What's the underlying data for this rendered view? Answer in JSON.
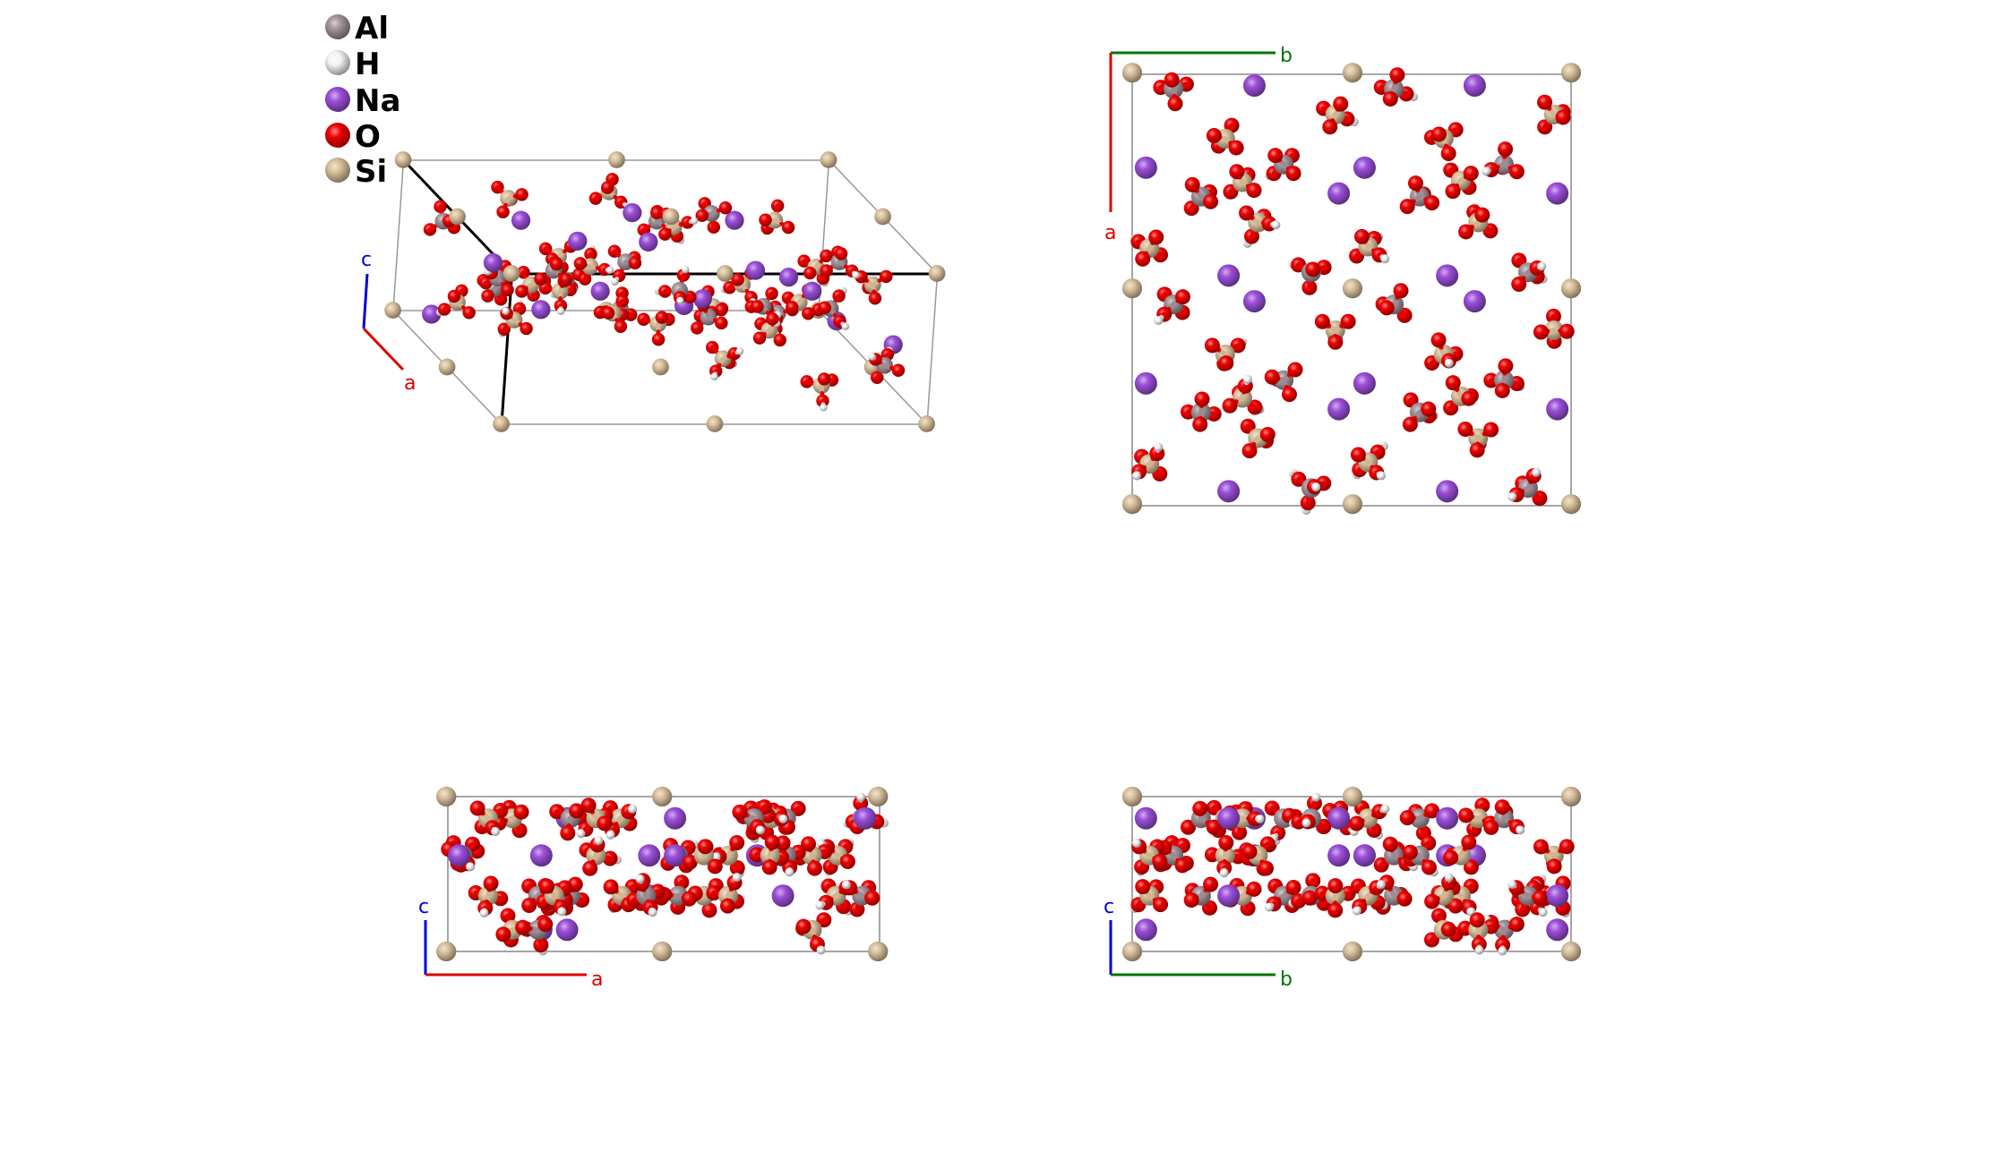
{
  "legend": [
    {
      "symbol": "Al",
      "color": "#a2939a"
    },
    {
      "symbol": "H",
      "color": "#f4f4f4"
    },
    {
      "symbol": "Na",
      "color": "#9a4ed8"
    },
    {
      "symbol": "O",
      "color": "#ee0000"
    },
    {
      "symbol": "Si",
      "color": "#d9c09c"
    }
  ],
  "axis_colors": {
    "a": "#dd0000",
    "b": "#007700",
    "c": "#0000dd"
  },
  "panels": [
    {
      "view": "perspective",
      "axes": {
        "first": "c",
        "second": "a"
      }
    },
    {
      "view": "along-c",
      "axes": {
        "first": "a",
        "second": "b"
      }
    },
    {
      "view": "along-b",
      "axes": {
        "first": "c",
        "second": "a"
      }
    },
    {
      "view": "along-a",
      "axes": {
        "first": "c",
        "second": "b"
      }
    }
  ]
}
